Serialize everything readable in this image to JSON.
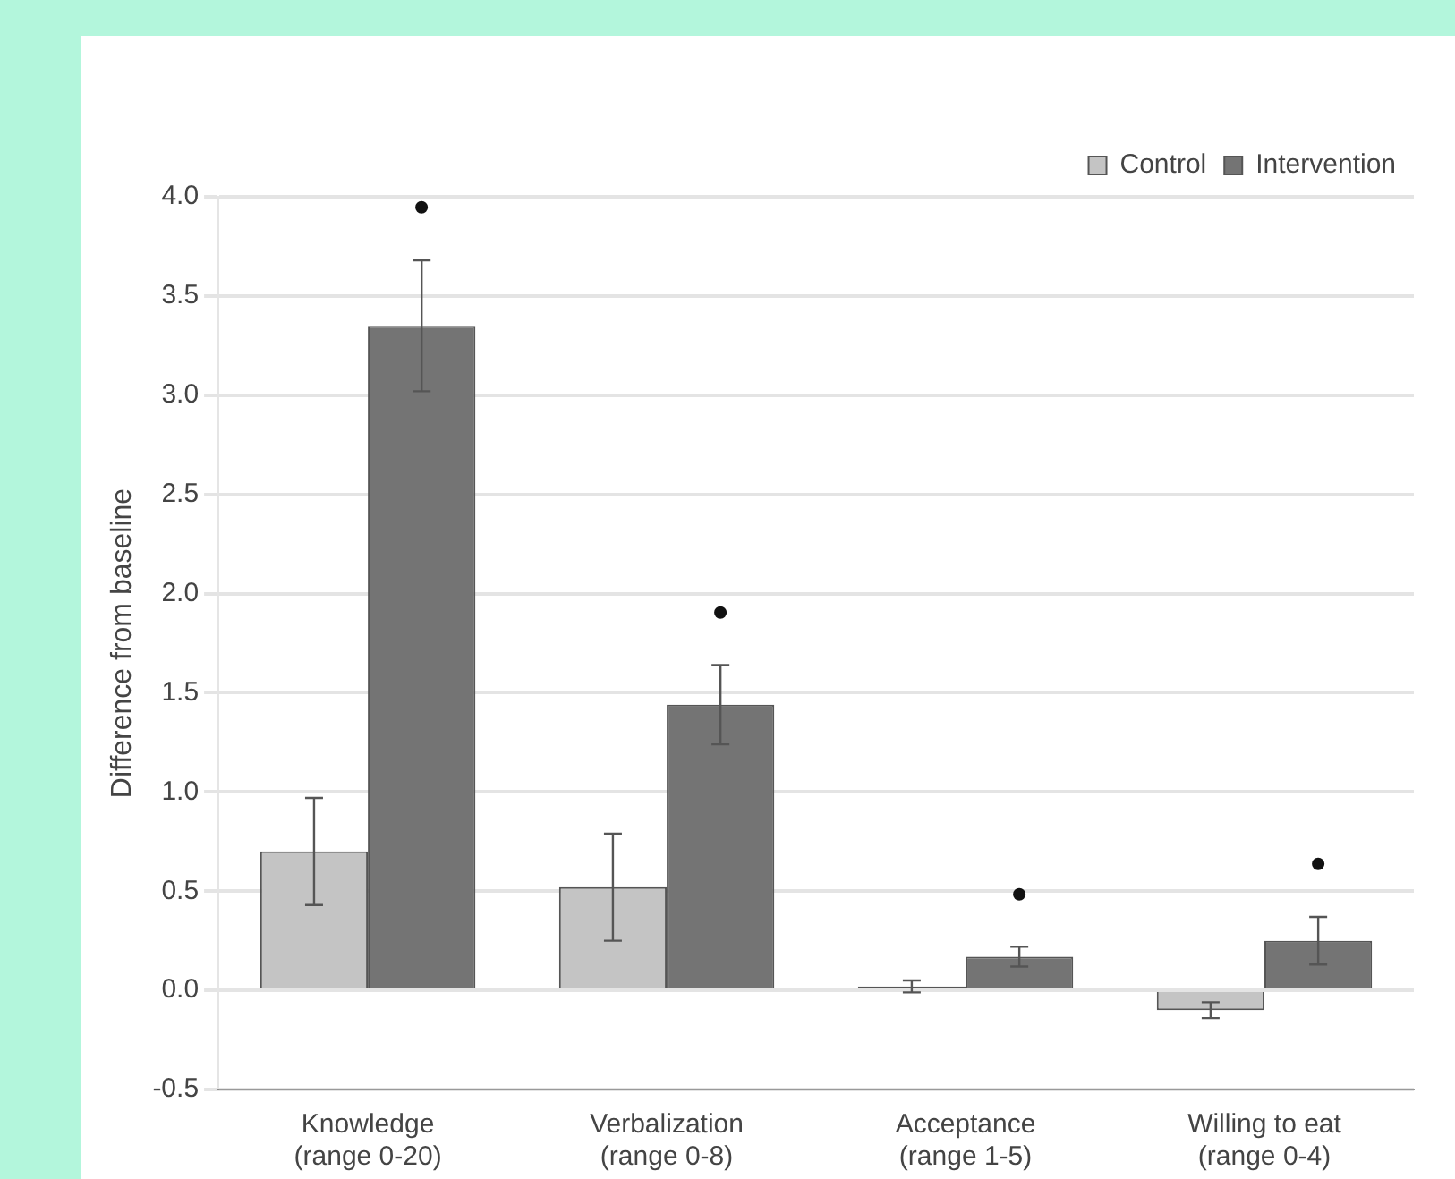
{
  "chart_data": {
    "type": "bar",
    "ylabel": "Difference from baseline",
    "categories": [
      "Knowledge\n(range 0-20)",
      "Verbalization\n(range 0-8)",
      "Acceptance\n(range 1-5)",
      "Willing to eat\n(range 0-4)"
    ],
    "series": [
      {
        "name": "Control",
        "color": "#c4c4c4",
        "values": [
          0.7,
          0.52,
          0.02,
          -0.1
        ],
        "errors": [
          0.27,
          0.27,
          0.03,
          0.04
        ]
      },
      {
        "name": "Intervention",
        "color": "#747474",
        "values": [
          3.35,
          1.44,
          0.17,
          0.25
        ],
        "errors": [
          0.33,
          0.2,
          0.05,
          0.12
        ]
      }
    ],
    "ylim": [
      -0.5,
      4.0
    ],
    "yticks": [
      {
        "value": -0.5,
        "label": "-0.5"
      },
      {
        "value": 0,
        "label": "0.0"
      },
      {
        "value": 0.5,
        "label": "0.5"
      },
      {
        "value": 1,
        "label": "1.0"
      },
      {
        "value": 1.5,
        "label": "1.5"
      },
      {
        "value": 2,
        "label": "2.0"
      },
      {
        "value": 2.5,
        "label": "2.5"
      },
      {
        "value": 3,
        "label": "3.0"
      },
      {
        "value": 3.5,
        "label": "3.5"
      },
      {
        "value": 4,
        "label": "4.0"
      }
    ],
    "annotations": [
      "•",
      "•",
      "•",
      "•"
    ],
    "grid": "y",
    "legend": "top right"
  }
}
